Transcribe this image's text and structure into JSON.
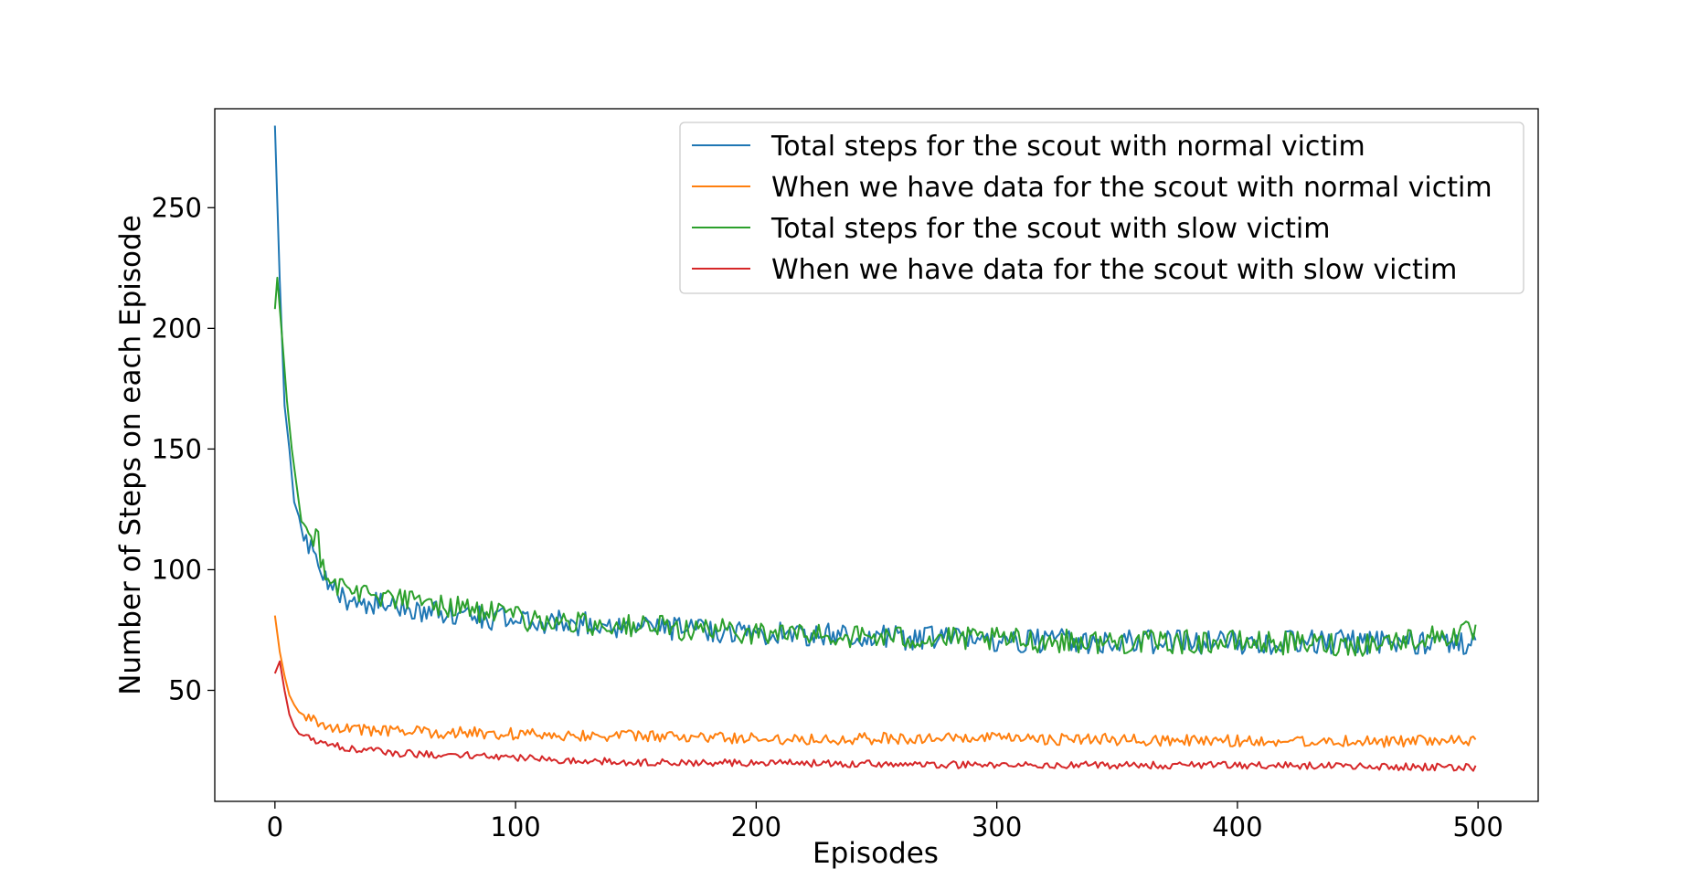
{
  "chart_data": {
    "type": "line",
    "title": "",
    "xlabel": "Episodes",
    "ylabel": "Number of Steps on each Episode",
    "xlim": [
      -25,
      525
    ],
    "ylim": [
      4,
      291
    ],
    "x_ticks": [
      0,
      100,
      200,
      300,
      400,
      500
    ],
    "y_ticks": [
      50,
      100,
      150,
      200,
      250
    ],
    "grid": false,
    "legend_position": "top-right",
    "series": [
      {
        "name": "Total steps for the scout with normal victim",
        "color": "#1f77b4",
        "points": [
          [
            0,
            284
          ],
          [
            2,
            220
          ],
          [
            4,
            168
          ],
          [
            6,
            150
          ],
          [
            8,
            128
          ],
          [
            10,
            122
          ],
          [
            12,
            112
          ],
          [
            15,
            108
          ],
          [
            18,
            100
          ],
          [
            20,
            95
          ],
          [
            25,
            92
          ],
          [
            30,
            88
          ],
          [
            35,
            87
          ],
          [
            40,
            86
          ],
          [
            50,
            85
          ],
          [
            60,
            83
          ],
          [
            70,
            82
          ],
          [
            80,
            81
          ],
          [
            100,
            79
          ],
          [
            120,
            78
          ],
          [
            140,
            77
          ],
          [
            160,
            76
          ],
          [
            180,
            75
          ],
          [
            200,
            74
          ],
          [
            250,
            72
          ],
          [
            300,
            71
          ],
          [
            350,
            70
          ],
          [
            400,
            70
          ],
          [
            450,
            70
          ],
          [
            499,
            70
          ]
        ],
        "noise": 5
      },
      {
        "name": "When we have data for the scout with normal victim",
        "color": "#ff7f0e",
        "points": [
          [
            0,
            81
          ],
          [
            2,
            66
          ],
          [
            4,
            56
          ],
          [
            6,
            48
          ],
          [
            8,
            44
          ],
          [
            10,
            41
          ],
          [
            15,
            38
          ],
          [
            20,
            36
          ],
          [
            30,
            34
          ],
          [
            50,
            33
          ],
          [
            100,
            32
          ],
          [
            150,
            31
          ],
          [
            200,
            30
          ],
          [
            300,
            30
          ],
          [
            400,
            29
          ],
          [
            499,
            29
          ]
        ],
        "noise": 2.5
      },
      {
        "name": "Total steps for the scout with slow victim",
        "color": "#2ca02c",
        "points": [
          [
            0,
            208
          ],
          [
            1,
            221
          ],
          [
            3,
            196
          ],
          [
            5,
            170
          ],
          [
            7,
            150
          ],
          [
            9,
            135
          ],
          [
            11,
            120
          ],
          [
            15,
            116
          ],
          [
            18,
            112
          ],
          [
            20,
            100
          ],
          [
            25,
            95
          ],
          [
            30,
            92
          ],
          [
            40,
            90
          ],
          [
            50,
            88
          ],
          [
            65,
            86
          ],
          [
            80,
            84
          ],
          [
            100,
            80
          ],
          [
            120,
            78
          ],
          [
            140,
            77
          ],
          [
            160,
            76
          ],
          [
            180,
            75
          ],
          [
            200,
            74
          ],
          [
            250,
            72
          ],
          [
            300,
            71
          ],
          [
            350,
            70
          ],
          [
            400,
            70
          ],
          [
            450,
            69
          ],
          [
            499,
            74
          ]
        ],
        "noise": 5
      },
      {
        "name": "When we have data for the scout with slow victim",
        "color": "#d62728",
        "points": [
          [
            0,
            57
          ],
          [
            2,
            62
          ],
          [
            4,
            50
          ],
          [
            6,
            40
          ],
          [
            8,
            35
          ],
          [
            10,
            32
          ],
          [
            15,
            30
          ],
          [
            20,
            28
          ],
          [
            30,
            26
          ],
          [
            50,
            24
          ],
          [
            80,
            23
          ],
          [
            100,
            22
          ],
          [
            150,
            20
          ],
          [
            200,
            20
          ],
          [
            300,
            19
          ],
          [
            400,
            19
          ],
          [
            499,
            18
          ]
        ],
        "noise": 1.5
      }
    ]
  }
}
